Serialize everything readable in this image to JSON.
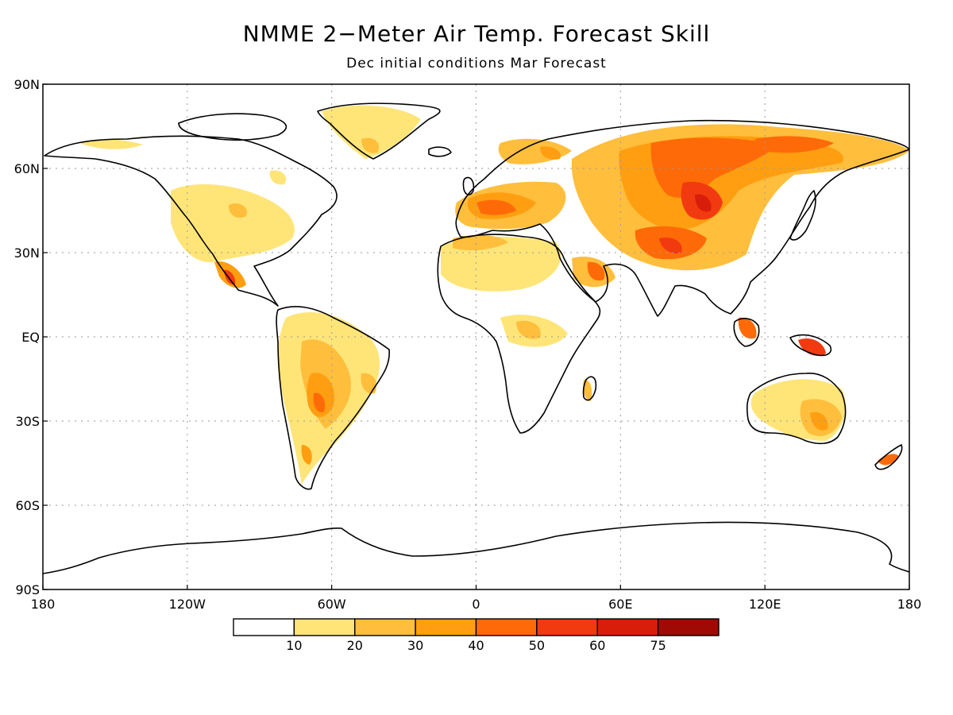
{
  "title": "NMME 2−Meter Air Temp. Forecast Skill",
  "subtitle": "Dec initial conditions   Mar Forecast",
  "map": {
    "projection": "equirectangular",
    "lon_range": [
      -180,
      180
    ],
    "lat_range": [
      -90,
      90
    ],
    "grid": true,
    "lat_ticks": [
      {
        "value": 90,
        "label": "90N"
      },
      {
        "value": 60,
        "label": "60N"
      },
      {
        "value": 30,
        "label": "30N"
      },
      {
        "value": 0,
        "label": "EQ"
      },
      {
        "value": -30,
        "label": "30S"
      },
      {
        "value": -60,
        "label": "60S"
      },
      {
        "value": -90,
        "label": "90S"
      }
    ],
    "lon_ticks": [
      {
        "value": -180,
        "label": "180"
      },
      {
        "value": -120,
        "label": "120W"
      },
      {
        "value": -60,
        "label": "60W"
      },
      {
        "value": 0,
        "label": "0"
      },
      {
        "value": 60,
        "label": "60E"
      },
      {
        "value": 120,
        "label": "120E"
      },
      {
        "value": 180,
        "label": "180"
      }
    ]
  },
  "legend": {
    "bins": [
      {
        "color": "#ffffff"
      },
      {
        "color": "#ffe578"
      },
      {
        "color": "#ffbe3c"
      },
      {
        "color": "#ff9e10"
      },
      {
        "color": "#ff6a08"
      },
      {
        "color": "#f23a10"
      },
      {
        "color": "#d81e0a"
      },
      {
        "color": "#a00a05"
      }
    ],
    "labels": [
      "10",
      "20",
      "30",
      "40",
      "50",
      "60",
      "75"
    ]
  },
  "land_color": "#ffffff",
  "coast_color": "#000000"
}
